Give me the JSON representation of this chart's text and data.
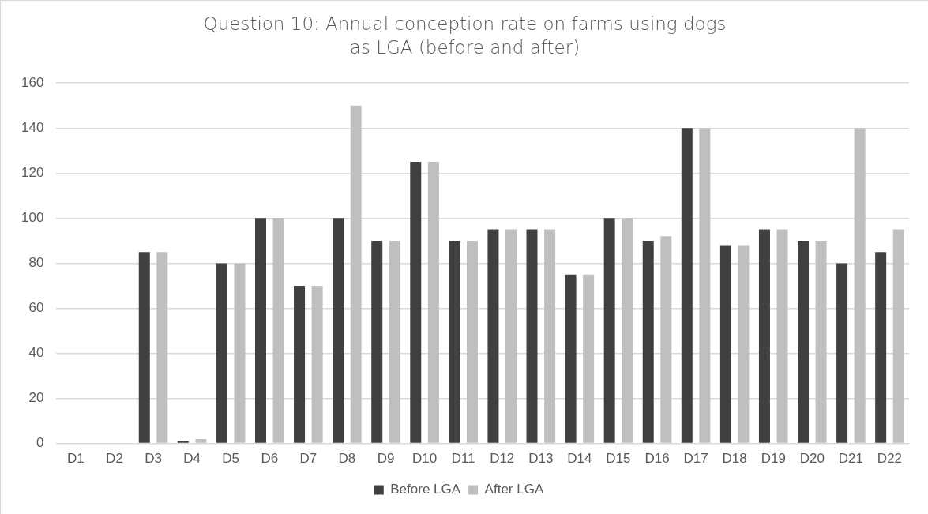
{
  "chart_data": {
    "type": "bar",
    "title": "Question 10: Annual conception rate on farms using dogs as LGA (before and after)",
    "categories": [
      "D1",
      "D2",
      "D3",
      "D4",
      "D5",
      "D6",
      "D7",
      "D8",
      "D9",
      "D10",
      "D11",
      "D12",
      "D13",
      "D14",
      "D15",
      "D16",
      "D17",
      "D18",
      "D19",
      "D20",
      "D21",
      "D22"
    ],
    "series": [
      {
        "name": "Before LGA",
        "color": "#404040",
        "values": [
          0,
          0,
          85,
          1,
          80,
          100,
          70,
          100,
          90,
          125,
          90,
          95,
          95,
          75,
          100,
          90,
          140,
          88,
          95,
          90,
          80,
          85
        ]
      },
      {
        "name": "After LGA",
        "color": "#bfbfbf",
        "values": [
          0,
          0,
          85,
          2,
          80,
          100,
          70,
          150,
          90,
          125,
          90,
          95,
          95,
          75,
          100,
          92,
          140,
          88,
          95,
          90,
          140,
          95
        ]
      }
    ],
    "ylim": [
      0,
      160
    ],
    "yticks": [
      0,
      20,
      40,
      60,
      80,
      100,
      120,
      140,
      160
    ],
    "grid": "y",
    "legend": "bottom"
  }
}
